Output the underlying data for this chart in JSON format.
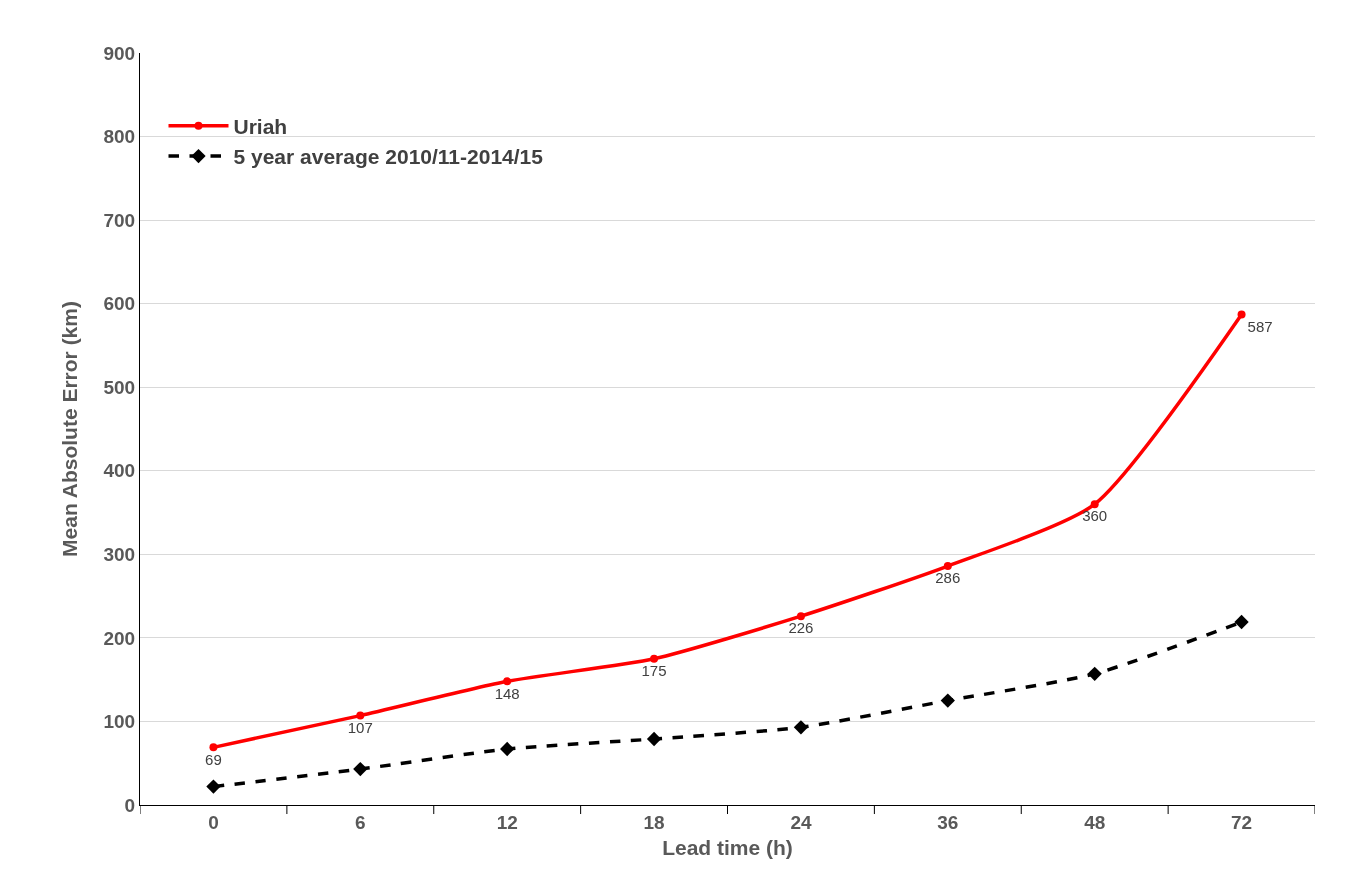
{
  "chart_data": {
    "type": "line",
    "xlabel": "Lead time (h)",
    "ylabel": "Mean Absolute Error (km)",
    "categories": [
      "0",
      "6",
      "12",
      "18",
      "24",
      "36",
      "48",
      "72"
    ],
    "series": [
      {
        "name": "Uriah",
        "color": "#ff0000",
        "marker": "circle",
        "line_style": "solid",
        "values": [
          69,
          107,
          148,
          175,
          226,
          286,
          360,
          587
        ],
        "value_labels": [
          "69",
          "107",
          "148",
          "175",
          "226",
          "286",
          "360",
          "587"
        ]
      },
      {
        "name": "5 year average 2010/11-2014/15",
        "color": "#000000",
        "marker": "diamond",
        "line_style": "dashed",
        "values": [
          22,
          43,
          67,
          79,
          93,
          125,
          157,
          219
        ]
      }
    ],
    "ylim": [
      0,
      900
    ],
    "yticks": [
      0,
      100,
      200,
      300,
      400,
      500,
      600,
      700,
      800,
      900
    ],
    "grid": "y",
    "legend": "top left"
  }
}
